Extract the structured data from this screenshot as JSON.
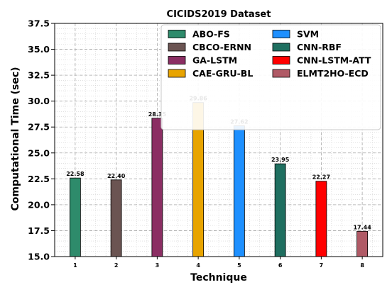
{
  "chart_data": {
    "type": "bar",
    "title": "CICIDS2019 Dataset",
    "xlabel": "Technique",
    "ylabel": "Computational Time (sec)",
    "categories": [
      "1",
      "2",
      "3",
      "4",
      "5",
      "6",
      "7",
      "8"
    ],
    "values": [
      22.58,
      22.4,
      28.35,
      29.86,
      27.62,
      23.95,
      22.27,
      17.44
    ],
    "value_labels": [
      "22.58",
      "22.40",
      "28.35",
      "29.86",
      "27.62",
      "23.95",
      "22.27",
      "17.44"
    ],
    "series": [
      {
        "name": "ABO-FS",
        "color": "#2e8b6b"
      },
      {
        "name": "CBCO-ERNN",
        "color": "#6b5452"
      },
      {
        "name": "GA-LSTM",
        "color": "#8b2e63"
      },
      {
        "name": "CAE-GRU-BL",
        "color": "#e8a400"
      },
      {
        "name": "SVM",
        "color": "#1e90ff"
      },
      {
        "name": "CNN-RBF",
        "color": "#1f6f60"
      },
      {
        "name": "CNN-LSTM-ATT",
        "color": "#ff0000"
      },
      {
        "name": "ELMT2HO-ECD",
        "color": "#b05a66"
      }
    ],
    "ylim": [
      15.0,
      37.5
    ],
    "yticks": [
      "15.0",
      "17.5",
      "20.0",
      "22.5",
      "25.0",
      "27.5",
      "30.0",
      "32.5",
      "35.0",
      "37.5"
    ],
    "grid": true,
    "legend": "top-right"
  }
}
